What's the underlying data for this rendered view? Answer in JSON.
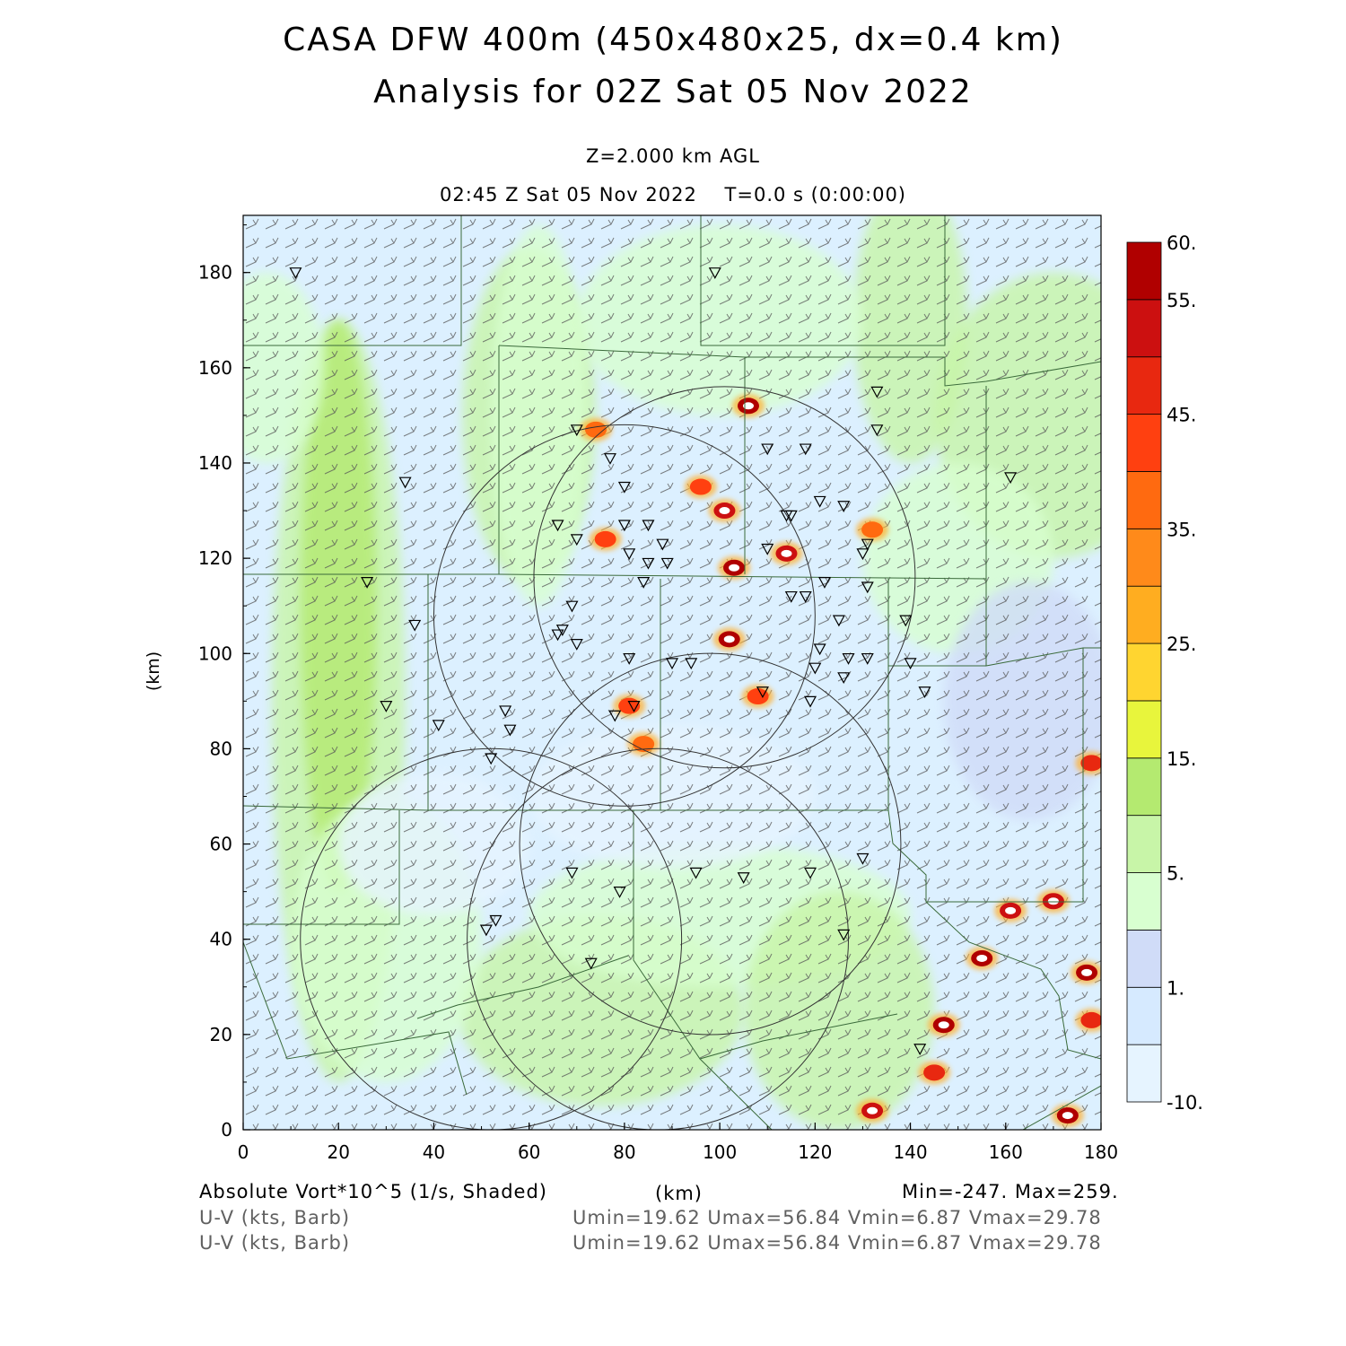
{
  "header": {
    "title_line1": "CASA DFW 400m (450x480x25, dx=0.4 km)",
    "title_line2": "Analysis for 02Z Sat 05 Nov 2022",
    "level": "Z=2.000 km AGL",
    "valid_time": "02:45 Z Sat 05 Nov 2022    T=0.0 s (0:00:00)"
  },
  "footer": {
    "field_label": "Absolute Vort*10^5 (1/s, Shaded)",
    "x_unit": "(km)",
    "minmax": "Min=-247. Max=259.",
    "barb_label_1": "U-V (kts, Barb)",
    "barb_stats_1": "Umin=19.62 Umax=56.84 Vmin=6.87 Vmax=29.78",
    "barb_label_2": "U-V (kts, Barb)",
    "barb_stats_2": "Umin=19.62 Umax=56.84 Vmin=6.87 Vmax=29.78"
  },
  "colors": {
    "shading_levels": [
      "#e6f4ff",
      "#d6eaff",
      "#d0dcf8",
      "#d8ffd0",
      "#c8f5a8",
      "#b4ea70",
      "#e8f53c",
      "#ffd530",
      "#ffad20",
      "#ff8a1a",
      "#ff6a10",
      "#ff4010",
      "#e82810",
      "#cc1010",
      "#b00000"
    ],
    "county_lines": "#3a6a3a",
    "radar_rings": "#333333",
    "barbs": "#505050"
  },
  "chart_data": {
    "type": "heatmap",
    "variable": "Absolute Vorticity x10^5 (1/s)",
    "xlabel": "(km)",
    "ylabel": "(km)",
    "xlim": [
      0,
      180
    ],
    "ylim": [
      0,
      192
    ],
    "xticks": [
      "0",
      "20",
      "40",
      "60",
      "80",
      "100",
      "120",
      "140",
      "160",
      "180"
    ],
    "yticks": [
      "0",
      "20",
      "40",
      "60",
      "80",
      "100",
      "120",
      "140",
      "160",
      "180"
    ],
    "colorbar": {
      "labels": [
        "-10.",
        "1.",
        "5.",
        "15.",
        "25.",
        "35.",
        "45.",
        "55.",
        "60."
      ],
      "label_values": [
        -10,
        1,
        5,
        15,
        25,
        35,
        45,
        55,
        60
      ]
    },
    "min": -247,
    "max": 259,
    "vorticity_maxima": [
      {
        "x": 103,
        "y": 118,
        "value": 60
      },
      {
        "x": 102,
        "y": 103,
        "value": 60
      },
      {
        "x": 106,
        "y": 152,
        "value": 60
      },
      {
        "x": 101,
        "y": 130,
        "value": 55
      },
      {
        "x": 114,
        "y": 121,
        "value": 55
      },
      {
        "x": 81,
        "y": 89,
        "value": 45
      },
      {
        "x": 84,
        "y": 81,
        "value": 40
      },
      {
        "x": 96,
        "y": 135,
        "value": 45
      },
      {
        "x": 132,
        "y": 126,
        "value": 40
      },
      {
        "x": 147,
        "y": 22,
        "value": 60
      },
      {
        "x": 155,
        "y": 36,
        "value": 60
      },
      {
        "x": 161,
        "y": 46,
        "value": 55
      },
      {
        "x": 170,
        "y": 48,
        "value": 55
      },
      {
        "x": 177,
        "y": 33,
        "value": 60
      },
      {
        "x": 178,
        "y": 23,
        "value": 50
      },
      {
        "x": 173,
        "y": 3,
        "value": 60
      },
      {
        "x": 132,
        "y": 4,
        "value": 55
      },
      {
        "x": 145,
        "y": 12,
        "value": 50
      },
      {
        "x": 76,
        "y": 124,
        "value": 45
      },
      {
        "x": 74,
        "y": 147,
        "value": 40
      },
      {
        "x": 108,
        "y": 91,
        "value": 45
      },
      {
        "x": 178,
        "y": 77,
        "value": 50
      }
    ],
    "radar_circles": [
      {
        "cx": 80,
        "cy": 108,
        "r": 40
      },
      {
        "cx": 101,
        "cy": 116,
        "r": 40
      },
      {
        "cx": 98,
        "cy": 60,
        "r": 40
      },
      {
        "cx": 52,
        "cy": 40,
        "r": 40
      },
      {
        "cx": 87,
        "cy": 40,
        "r": 40
      }
    ],
    "station_markers": [
      [
        11,
        180
      ],
      [
        99,
        180
      ],
      [
        34,
        136
      ],
      [
        26,
        115
      ],
      [
        36,
        106
      ],
      [
        30,
        89
      ],
      [
        41,
        85
      ],
      [
        70,
        147
      ],
      [
        77,
        141
      ],
      [
        80,
        135
      ],
      [
        66,
        127
      ],
      [
        70,
        124
      ],
      [
        80,
        127
      ],
      [
        85,
        127
      ],
      [
        88,
        123
      ],
      [
        81,
        121
      ],
      [
        85,
        119
      ],
      [
        89,
        119
      ],
      [
        84,
        115
      ],
      [
        69,
        110
      ],
      [
        70,
        102
      ],
      [
        66,
        104
      ],
      [
        67,
        105
      ],
      [
        81,
        99
      ],
      [
        78,
        87
      ],
      [
        82,
        89
      ],
      [
        90,
        98
      ],
      [
        94,
        98
      ],
      [
        110,
        143
      ],
      [
        118,
        143
      ],
      [
        114,
        129
      ],
      [
        115,
        129
      ],
      [
        121,
        132
      ],
      [
        126,
        131
      ],
      [
        130,
        121
      ],
      [
        131,
        123
      ],
      [
        110,
        122
      ],
      [
        122,
        115
      ],
      [
        131,
        114
      ],
      [
        115,
        112
      ],
      [
        118,
        112
      ],
      [
        125,
        107
      ],
      [
        121,
        101
      ],
      [
        127,
        99
      ],
      [
        131,
        99
      ],
      [
        120,
        97
      ],
      [
        126,
        95
      ],
      [
        109,
        92
      ],
      [
        119,
        90
      ],
      [
        55,
        88
      ],
      [
        56,
        84
      ],
      [
        52,
        78
      ],
      [
        69,
        54
      ],
      [
        79,
        50
      ],
      [
        95,
        54
      ],
      [
        105,
        53
      ],
      [
        119,
        54
      ],
      [
        130,
        57
      ],
      [
        53,
        44
      ],
      [
        51,
        42
      ],
      [
        73,
        35
      ],
      [
        126,
        41
      ],
      [
        139,
        107
      ],
      [
        140,
        98
      ],
      [
        143,
        92
      ],
      [
        161,
        137
      ],
      [
        133,
        155
      ],
      [
        133,
        147
      ],
      [
        142,
        17
      ]
    ]
  }
}
